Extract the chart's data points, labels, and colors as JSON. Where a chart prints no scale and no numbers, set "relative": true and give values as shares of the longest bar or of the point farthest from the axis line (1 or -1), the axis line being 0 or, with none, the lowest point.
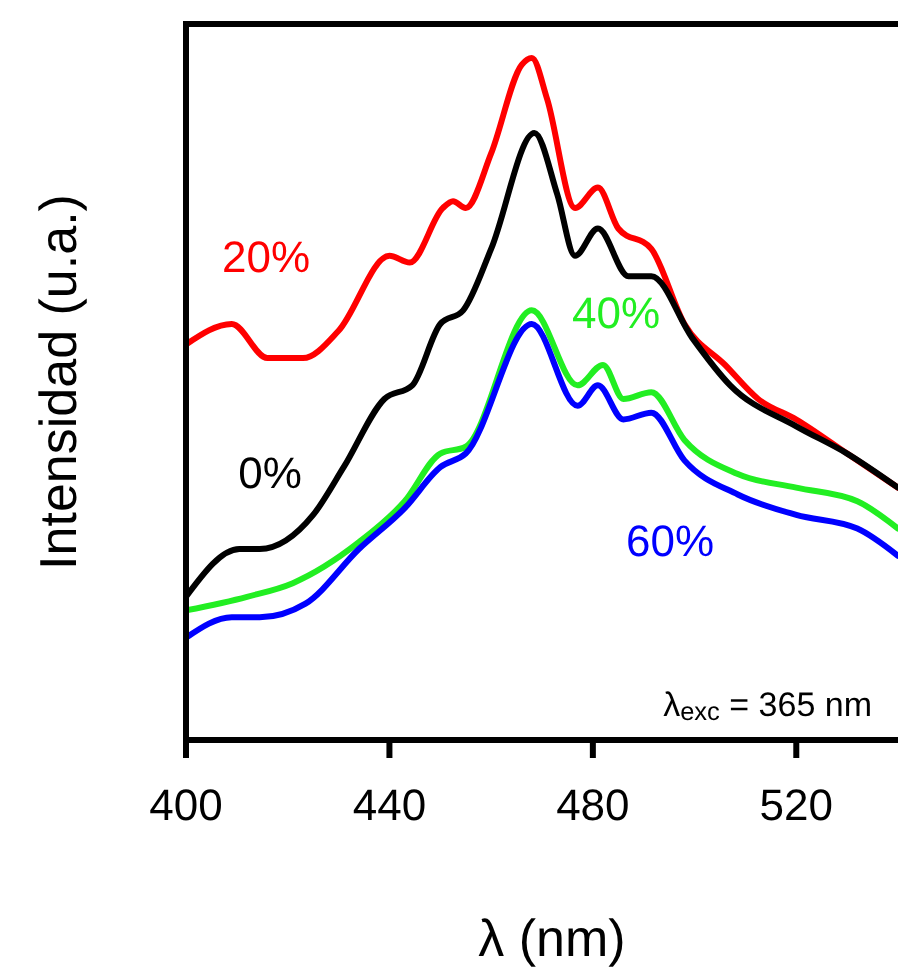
{
  "chart_data": {
    "type": "line",
    "relative": true,
    "xlabel": "λ (nm)",
    "ylabel": "Intensidad (u.a.)",
    "xlim": [
      400,
      540
    ],
    "xticks": [
      400,
      440,
      480,
      520
    ],
    "annotations": [
      "λ$_{exc}$ = 365 nm"
    ],
    "series": [
      {
        "name": "20%",
        "color": "#ff0000",
        "x": [
          400,
          409,
          416,
          423,
          430,
          440,
          444,
          450.5,
          452.5,
          455,
          460,
          466,
          468,
          471,
          476.5,
          481,
          485,
          491.5,
          498,
          506,
          512.5,
          520,
          530,
          540
        ],
        "values": [
          0.58,
          0.61,
          0.56,
          0.56,
          0.6,
          0.71,
          0.7,
          0.78,
          0.79,
          0.78,
          0.86,
          0.99,
          1,
          0.94,
          0.78,
          0.81,
          0.75,
          0.72,
          0.61,
          0.55,
          0.5,
          0.47,
          0.42,
          0.37
        ]
      },
      {
        "name": "0%",
        "color": "#000000",
        "x": [
          400,
          410.5,
          414.5,
          425,
          431,
          439,
          444.5,
          450,
          454.5,
          460,
          468.5,
          473,
          476.5,
          481,
          487,
          491.5,
          499.5,
          507,
          520,
          530,
          540
        ],
        "values": [
          0.21,
          0.28,
          0.28,
          0.33,
          0.4,
          0.5,
          0.52,
          0.61,
          0.63,
          0.72,
          0.89,
          0.8,
          0.71,
          0.75,
          0.68,
          0.68,
          0.59,
          0.52,
          0.46,
          0.42,
          0.37
        ]
      },
      {
        "name": "40%",
        "color": "#22ee22",
        "x": [
          400,
          412,
          421,
          434,
          443,
          450,
          455,
          468,
          477,
          482,
          486,
          491.5,
          498,
          508.5,
          520,
          532,
          540
        ],
        "values": [
          0.19,
          0.21,
          0.23,
          0.29,
          0.35,
          0.42,
          0.43,
          0.63,
          0.52,
          0.55,
          0.5,
          0.51,
          0.44,
          0.39,
          0.37,
          0.35,
          0.31
        ]
      },
      {
        "name": "60%",
        "color": "#0000ff",
        "x": [
          400,
          409,
          414.5,
          423.5,
          434,
          443,
          450,
          455,
          468,
          477,
          481,
          486,
          491.5,
          498,
          508.5,
          520,
          532,
          540
        ],
        "values": [
          0.15,
          0.18,
          0.18,
          0.2,
          0.28,
          0.34,
          0.4,
          0.42,
          0.61,
          0.49,
          0.52,
          0.47,
          0.48,
          0.41,
          0.36,
          0.33,
          0.31,
          0.27
        ]
      }
    ]
  }
}
